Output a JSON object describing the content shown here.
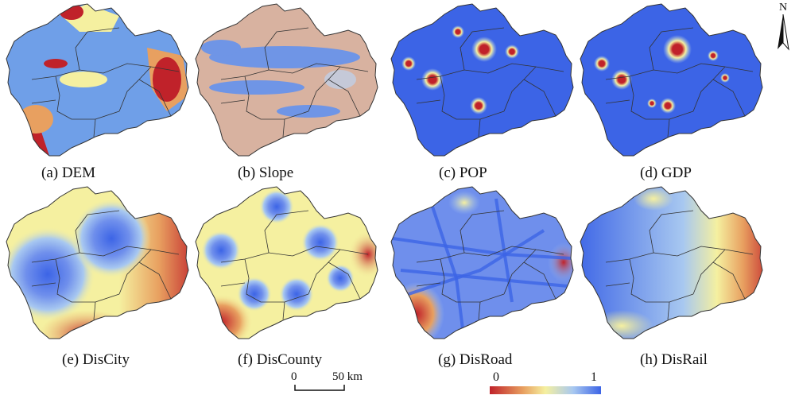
{
  "panels": [
    {
      "caption": "(a) DEM",
      "style": "dem"
    },
    {
      "caption": "(b) Slope",
      "style": "slope"
    },
    {
      "caption": "(c) POP",
      "style": "pop"
    },
    {
      "caption": "(d) GDP",
      "style": "gdp"
    },
    {
      "caption": "(e) DisCity",
      "style": "discity"
    },
    {
      "caption": "(f) DisCounty",
      "style": "discounty"
    },
    {
      "caption": "(g) DisRoad",
      "style": "disroad"
    },
    {
      "caption": "(h) DisRail",
      "style": "disrail"
    }
  ],
  "north_arrow": {
    "label": "N"
  },
  "scale_bar": {
    "start": "0",
    "end": "50 km"
  },
  "legend": {
    "min": "0",
    "max": "1"
  },
  "colors": {
    "low": "#c0222a",
    "mid_low": "#e8a060",
    "mid": "#f5f0a0",
    "mid_high": "#a8c8f0",
    "high": "#3c64e6",
    "boundary": "#333333"
  }
}
